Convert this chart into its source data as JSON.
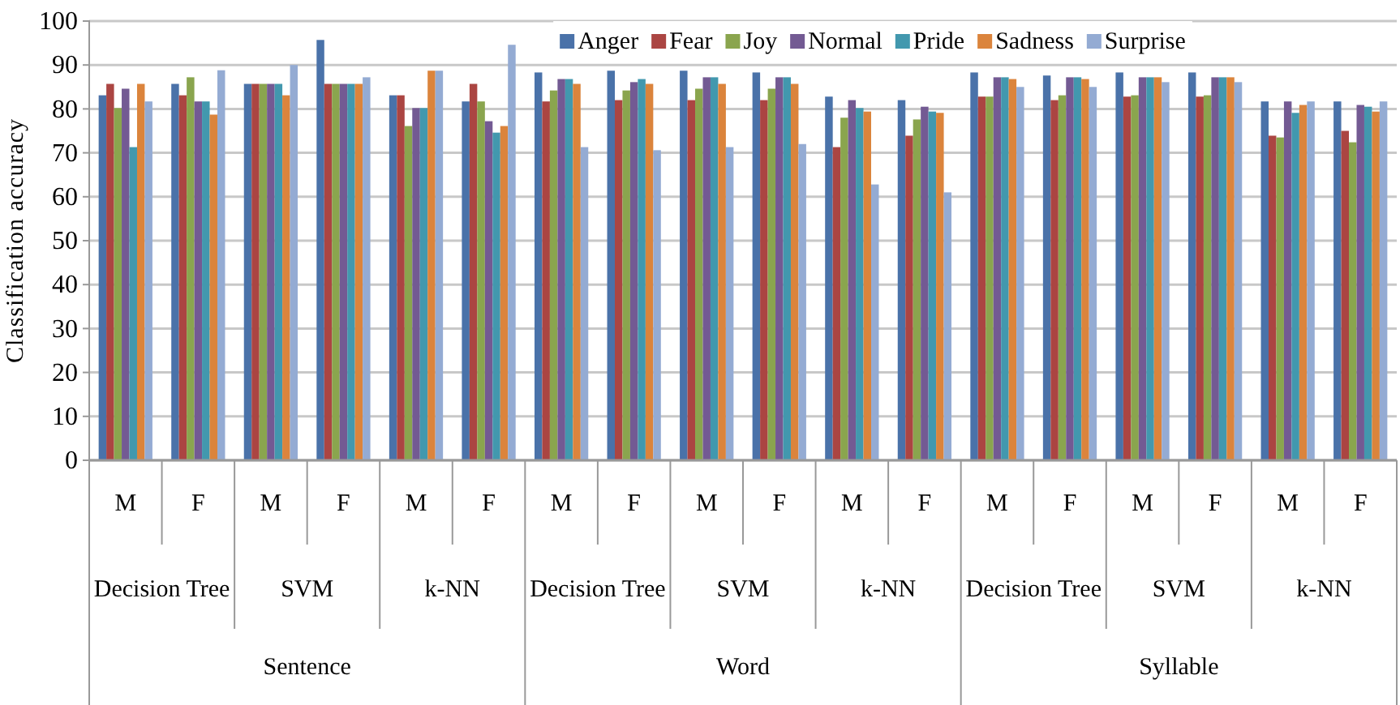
{
  "chart_data": {
    "type": "bar",
    "ylabel": "Classification accuracy",
    "categories": [
      "M",
      "F",
      "M",
      "F",
      "M",
      "F",
      "M",
      "F",
      "M",
      "F",
      "M",
      "F",
      "M",
      "F",
      "M",
      "F",
      "M",
      "F"
    ],
    "annotations": [
      "Decision Tree",
      "SVM",
      "k-NN",
      "Decision Tree",
      "SVM",
      "k-NN",
      "Decision Tree",
      "SVM",
      "k-NN",
      "Sentence",
      "Word",
      "Syllable"
    ],
    "series": [
      {
        "name": "Anger",
        "color": "#4a72a9",
        "values": [
          83.1,
          85.7,
          85.7,
          95.7,
          83.1,
          81.7,
          88.3,
          88.7,
          88.7,
          88.3,
          82.8,
          82.0,
          88.3,
          87.6,
          88.3,
          88.3,
          81.7,
          81.7
        ]
      },
      {
        "name": "Fear",
        "color": "#ab4542",
        "values": [
          85.7,
          83.1,
          85.7,
          85.7,
          83.1,
          85.7,
          81.7,
          82.0,
          82.0,
          82.0,
          71.3,
          73.9,
          82.8,
          82.0,
          82.8,
          82.8,
          73.9,
          75.0
        ]
      },
      {
        "name": "Joy",
        "color": "#8aa54e",
        "values": [
          80.2,
          87.2,
          85.7,
          85.7,
          76.1,
          81.7,
          84.2,
          84.2,
          84.6,
          84.6,
          78.0,
          77.6,
          82.8,
          83.1,
          83.1,
          83.1,
          73.5,
          72.4
        ]
      },
      {
        "name": "Normal",
        "color": "#735a93",
        "values": [
          84.6,
          81.7,
          85.7,
          85.7,
          80.2,
          77.2,
          86.8,
          86.1,
          87.2,
          87.2,
          82.0,
          80.5,
          87.2,
          87.2,
          87.2,
          87.2,
          81.7,
          80.9
        ]
      },
      {
        "name": "Pride",
        "color": "#4298ae",
        "values": [
          71.3,
          81.7,
          85.7,
          85.7,
          80.2,
          74.6,
          86.8,
          86.8,
          87.2,
          87.2,
          80.2,
          79.4,
          87.2,
          87.2,
          87.2,
          87.2,
          79.1,
          80.5
        ]
      },
      {
        "name": "Sadness",
        "color": "#db843c",
        "values": [
          85.7,
          78.7,
          83.1,
          85.7,
          88.7,
          76.1,
          85.7,
          85.7,
          85.7,
          85.7,
          79.4,
          79.1,
          86.8,
          86.8,
          87.2,
          87.2,
          80.9,
          79.4
        ]
      },
      {
        "name": "Surprise",
        "color": "#94abd3",
        "values": [
          81.7,
          88.8,
          90.0,
          87.2,
          88.7,
          94.6,
          71.3,
          70.6,
          71.3,
          72.0,
          62.8,
          61.0,
          85.0,
          85.0,
          86.1,
          86.1,
          81.7,
          81.7
        ]
      }
    ],
    "ylim": [
      0,
      100
    ],
    "yticks": [
      0,
      10,
      20,
      30,
      40,
      50,
      60,
      70,
      80,
      90,
      100
    ],
    "grid": "y",
    "legend": "top"
  }
}
